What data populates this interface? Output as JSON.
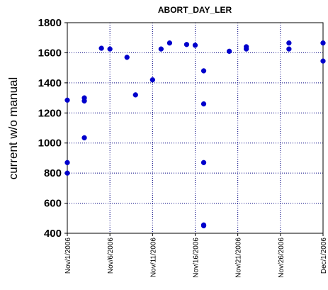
{
  "chart_data": {
    "type": "scatter",
    "title": "ABORT_DAY_LER",
    "xlabel": "",
    "ylabel": "current w/o manual",
    "x_axis_type": "date",
    "xlim": [
      "2006-11-01",
      "2006-12-01"
    ],
    "ylim": [
      400,
      1800
    ],
    "yticks": [
      400,
      600,
      800,
      1000,
      1200,
      1400,
      1600,
      1800
    ],
    "xticks": [
      "2006-11-01",
      "2006-11-06",
      "2006-11-11",
      "2006-11-16",
      "2006-11-21",
      "2006-11-26",
      "2006-12-01"
    ],
    "xtick_labels": [
      "Nov/1/2006",
      "Nov/6/2006",
      "Nov/11/2006",
      "Nov/16/2006",
      "Nov/21/2006",
      "Nov/26/2006",
      "Dec/1/2006"
    ],
    "grid": true,
    "marker_color": "#0000cc",
    "points": [
      {
        "x": "2006-11-01",
        "y": 1285
      },
      {
        "x": "2006-11-01",
        "y": 870
      },
      {
        "x": "2006-11-01",
        "y": 800
      },
      {
        "x": "2006-11-03",
        "y": 1300
      },
      {
        "x": "2006-11-03",
        "y": 1280
      },
      {
        "x": "2006-11-03",
        "y": 1035
      },
      {
        "x": "2006-11-05",
        "y": 1630
      },
      {
        "x": "2006-11-06",
        "y": 1625
      },
      {
        "x": "2006-11-08",
        "y": 1570
      },
      {
        "x": "2006-11-09",
        "y": 1320
      },
      {
        "x": "2006-11-11",
        "y": 1420
      },
      {
        "x": "2006-11-12",
        "y": 1625
      },
      {
        "x": "2006-11-13",
        "y": 1665
      },
      {
        "x": "2006-11-15",
        "y": 1655
      },
      {
        "x": "2006-11-16",
        "y": 1650
      },
      {
        "x": "2006-11-17",
        "y": 1480
      },
      {
        "x": "2006-11-17",
        "y": 1260
      },
      {
        "x": "2006-11-17",
        "y": 870
      },
      {
        "x": "2006-11-17",
        "y": 455
      },
      {
        "x": "2006-11-17",
        "y": 450
      },
      {
        "x": "2006-11-20",
        "y": 1610
      },
      {
        "x": "2006-11-22",
        "y": 1640
      },
      {
        "x": "2006-11-22",
        "y": 1625
      },
      {
        "x": "2006-11-27",
        "y": 1665
      },
      {
        "x": "2006-11-27",
        "y": 1625
      },
      {
        "x": "2006-12-01",
        "y": 1665
      },
      {
        "x": "2006-12-01",
        "y": 1545
      }
    ]
  }
}
